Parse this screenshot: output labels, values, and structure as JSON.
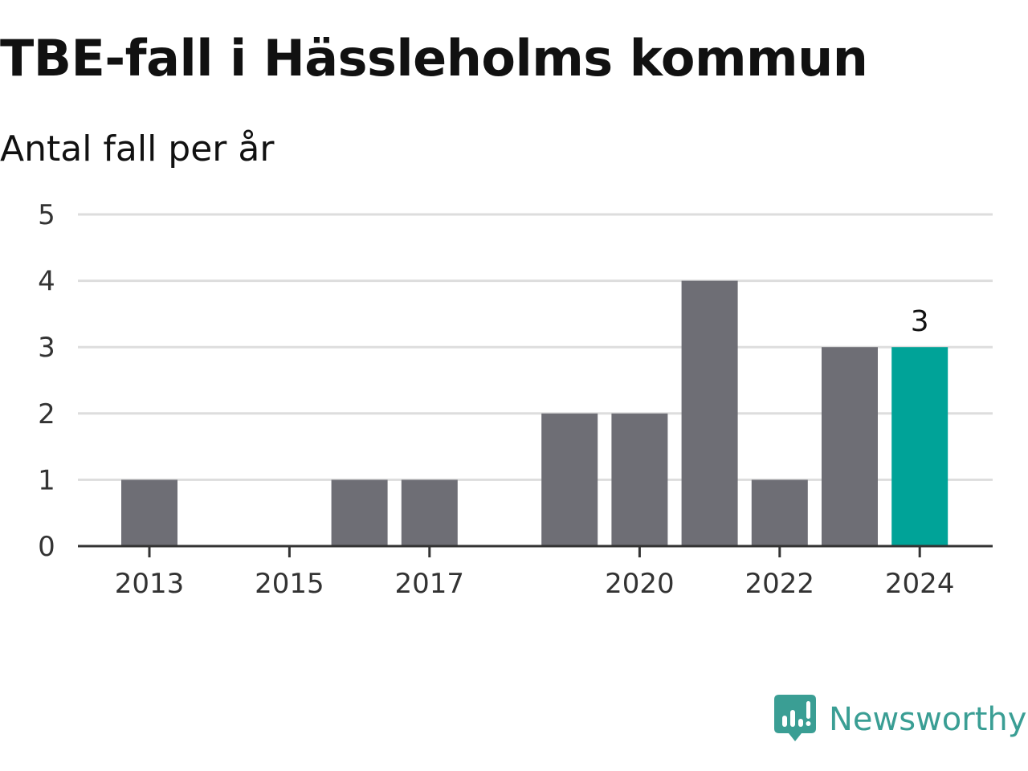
{
  "header": {
    "title": "TBE-fall i Hässleholms kommun",
    "subtitle": "Antal fall per år"
  },
  "brand": {
    "name": "Newsworthy",
    "icon": "newsworthy-logo-icon"
  },
  "colors": {
    "bar": "#6e6e75",
    "highlight": "#00a398",
    "grid": "#dddddd",
    "axis": "#333333",
    "brand": "#3a9e94"
  },
  "chart_data": {
    "type": "bar",
    "categories": [
      "2013",
      "2014",
      "2015",
      "2016",
      "2017",
      "2018",
      "2019",
      "2020",
      "2021",
      "2022",
      "2023",
      "2024"
    ],
    "values": [
      1,
      0,
      0,
      1,
      1,
      0,
      2,
      2,
      4,
      1,
      3,
      3
    ],
    "title": "TBE-fall i Hässleholms kommun",
    "subtitle": "Antal fall per år",
    "xlabel": "",
    "ylabel": "",
    "ylim": [
      0,
      5
    ],
    "yticks": [
      "0",
      "1",
      "2",
      "3",
      "4",
      "5"
    ],
    "xticks": [
      "2013",
      "2015",
      "2017",
      "2020",
      "2022",
      "2024"
    ],
    "highlight_category": "2024",
    "highlight_label": "3",
    "grid": true,
    "legend": "none"
  }
}
